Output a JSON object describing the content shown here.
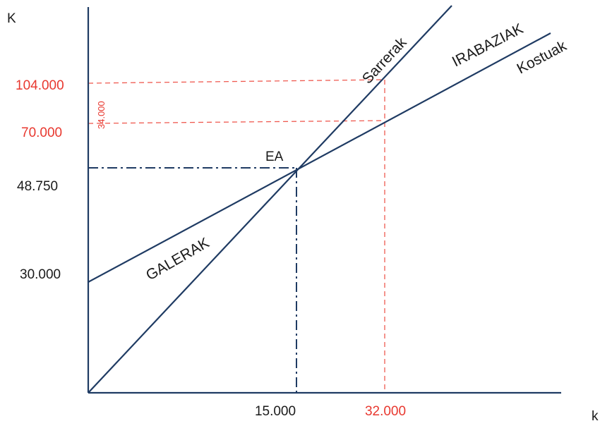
{
  "axes": {
    "y_label": "K",
    "x_label": "k"
  },
  "y_labels": {
    "revenue_at_32000": "104.000",
    "cost_at_32000": "70.000",
    "difference": "34.000",
    "break_even": "48.750",
    "fixed_cost": "30.000"
  },
  "x_labels": {
    "break_even": "15.000",
    "output": "32.000"
  },
  "annotations": {
    "break_even_point": "EA",
    "loss": "GALERAK",
    "revenue": "Sarrerak",
    "profit": "IRABAZIAK",
    "cost": "Kostuak"
  }
}
